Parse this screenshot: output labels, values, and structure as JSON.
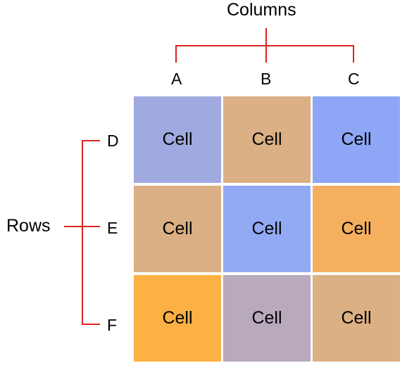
{
  "columns_title": "Columns",
  "rows_title": "Rows",
  "column_labels": [
    "A",
    "B",
    "C"
  ],
  "row_labels": [
    "D",
    "E",
    "F"
  ],
  "bracket_color": "#dd2222",
  "cells": [
    [
      {
        "text": "Cell",
        "color": "#a0aae0"
      },
      {
        "text": "Cell",
        "color": "#dab084"
      },
      {
        "text": "Cell",
        "color": "#8ea6f5"
      }
    ],
    [
      {
        "text": "Cell",
        "color": "#dab084"
      },
      {
        "text": "Cell",
        "color": "#92aaf4"
      },
      {
        "text": "Cell",
        "color": "#f4b05e"
      }
    ],
    [
      {
        "text": "Cell",
        "color": "#fdb043"
      },
      {
        "text": "Cell",
        "color": "#b8aabc"
      },
      {
        "text": "Cell",
        "color": "#dab084"
      }
    ]
  ]
}
